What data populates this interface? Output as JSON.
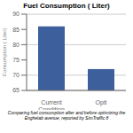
{
  "chart_data": {
    "type": "bar",
    "title": "Fuel Consumption ( Liter)",
    "categories": [
      "Current\nCondition",
      "Opti"
    ],
    "values": [
      86,
      72
    ],
    "color": "#3d5f9c",
    "ylim": [
      65,
      90
    ],
    "yticks": [
      65,
      70,
      75,
      80,
      85,
      90
    ],
    "ylabel": "Consumption ( Liter)",
    "caption": "Comparing fuel consumption after and before optimizing the\nEnghelab avenue, reported by SimTraffic 8",
    "grid": true
  }
}
